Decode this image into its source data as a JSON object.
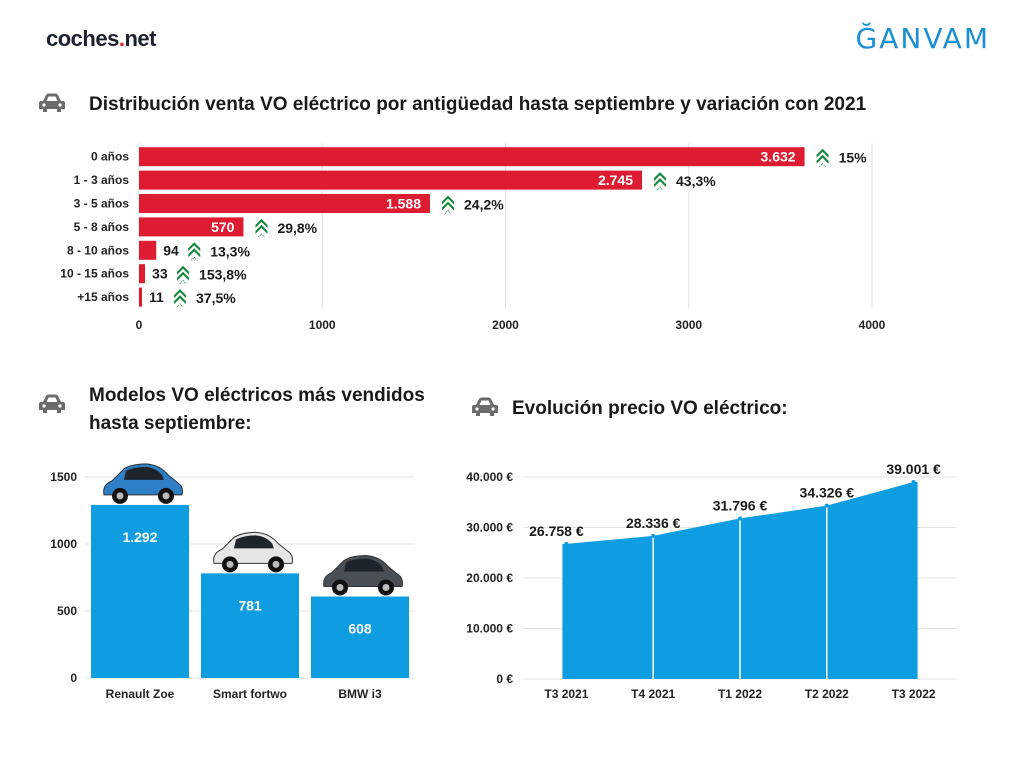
{
  "header": {
    "brand_left_a": "coches",
    "brand_left_sep": ".",
    "brand_left_b": "net",
    "brand_right": "ĞANVAM"
  },
  "colors": {
    "red": "#dd1c32",
    "blue": "#0e9de0",
    "green": "#138a3e",
    "icon": "#6b6b6b"
  },
  "sections": {
    "top_title": "Distribución venta VO eléctrico por antigüedad hasta septiembre y variación con 2021",
    "left_title_1": "Modelos VO eléctricos más vendidos",
    "left_title_2": "hasta septiembre:",
    "right_title": "Evolución precio VO eléctrico:"
  },
  "chart_data": [
    {
      "type": "bar",
      "orientation": "horizontal",
      "title": "Distribución venta VO eléctrico por antigüedad hasta septiembre y variación con 2021",
      "categories": [
        "0 años",
        "1 - 3 años",
        "3 - 5 años",
        "5 - 8 años",
        "8 - 10 años",
        "10 - 15 años",
        "+15 años"
      ],
      "values": [
        3632,
        2745,
        1588,
        570,
        94,
        33,
        11
      ],
      "value_labels": [
        "3.632",
        "2.745",
        "1.588",
        "570",
        "94",
        "33",
        "11"
      ],
      "variation_labels": [
        "15%",
        "43,3%",
        "24,2%",
        "29,8%",
        "13,3%",
        "153,8%",
        "37,5%"
      ],
      "variation_direction": "up",
      "xticks": [
        "0",
        "1000",
        "2000",
        "3000",
        "4000"
      ],
      "xlim": [
        0,
        4000
      ],
      "grid": true
    },
    {
      "type": "bar",
      "title": "Modelos VO eléctricos más vendidos hasta septiembre:",
      "categories": [
        "Renault Zoe",
        "Smart fortwo",
        "BMW i3"
      ],
      "values": [
        1292,
        781,
        608
      ],
      "value_labels": [
        "1.292",
        "781",
        "608"
      ],
      "yticks": [
        "0",
        "500",
        "1000",
        "1500"
      ],
      "ylim": [
        0,
        1500
      ],
      "grid": true
    },
    {
      "type": "area",
      "title": "Evolución precio VO eléctrico:",
      "categories": [
        "T3 2021",
        "T4 2021",
        "T1 2022",
        "T2 2022",
        "T3 2022"
      ],
      "values": [
        26758,
        28336,
        31796,
        34326,
        39001
      ],
      "value_labels": [
        "26.758 €",
        "28.336 €",
        "31.796 €",
        "34.326 €",
        "39.001 €"
      ],
      "yticks": [
        "0 €",
        "10.000 €",
        "20.000 €",
        "30.000 €",
        "40.000 €"
      ],
      "ylim": [
        0,
        40000
      ],
      "grid": true
    }
  ]
}
